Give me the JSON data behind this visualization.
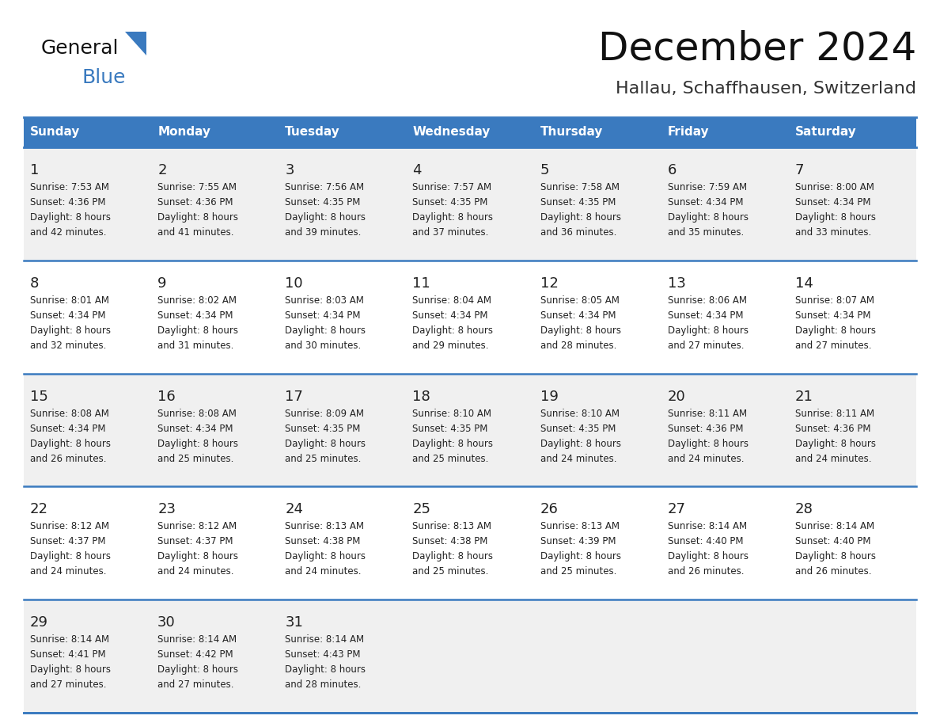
{
  "title": "December 2024",
  "subtitle": "Hallau, Schaffhausen, Switzerland",
  "header_color": "#3a7abf",
  "header_text_color": "#ffffff",
  "row_bg_odd": "#f0f0f0",
  "row_bg_even": "#ffffff",
  "border_color": "#3a7abf",
  "text_color": "#222222",
  "days_of_week": [
    "Sunday",
    "Monday",
    "Tuesday",
    "Wednesday",
    "Thursday",
    "Friday",
    "Saturday"
  ],
  "weeks": [
    [
      {
        "day": 1,
        "sunrise": "7:53 AM",
        "sunset": "4:36 PM",
        "daylight": "8 hours and 42 minutes"
      },
      {
        "day": 2,
        "sunrise": "7:55 AM",
        "sunset": "4:36 PM",
        "daylight": "8 hours and 41 minutes"
      },
      {
        "day": 3,
        "sunrise": "7:56 AM",
        "sunset": "4:35 PM",
        "daylight": "8 hours and 39 minutes"
      },
      {
        "day": 4,
        "sunrise": "7:57 AM",
        "sunset": "4:35 PM",
        "daylight": "8 hours and 37 minutes"
      },
      {
        "day": 5,
        "sunrise": "7:58 AM",
        "sunset": "4:35 PM",
        "daylight": "8 hours and 36 minutes"
      },
      {
        "day": 6,
        "sunrise": "7:59 AM",
        "sunset": "4:34 PM",
        "daylight": "8 hours and 35 minutes"
      },
      {
        "day": 7,
        "sunrise": "8:00 AM",
        "sunset": "4:34 PM",
        "daylight": "8 hours and 33 minutes"
      }
    ],
    [
      {
        "day": 8,
        "sunrise": "8:01 AM",
        "sunset": "4:34 PM",
        "daylight": "8 hours and 32 minutes"
      },
      {
        "day": 9,
        "sunrise": "8:02 AM",
        "sunset": "4:34 PM",
        "daylight": "8 hours and 31 minutes"
      },
      {
        "day": 10,
        "sunrise": "8:03 AM",
        "sunset": "4:34 PM",
        "daylight": "8 hours and 30 minutes"
      },
      {
        "day": 11,
        "sunrise": "8:04 AM",
        "sunset": "4:34 PM",
        "daylight": "8 hours and 29 minutes"
      },
      {
        "day": 12,
        "sunrise": "8:05 AM",
        "sunset": "4:34 PM",
        "daylight": "8 hours and 28 minutes"
      },
      {
        "day": 13,
        "sunrise": "8:06 AM",
        "sunset": "4:34 PM",
        "daylight": "8 hours and 27 minutes"
      },
      {
        "day": 14,
        "sunrise": "8:07 AM",
        "sunset": "4:34 PM",
        "daylight": "8 hours and 27 minutes"
      }
    ],
    [
      {
        "day": 15,
        "sunrise": "8:08 AM",
        "sunset": "4:34 PM",
        "daylight": "8 hours and 26 minutes"
      },
      {
        "day": 16,
        "sunrise": "8:08 AM",
        "sunset": "4:34 PM",
        "daylight": "8 hours and 25 minutes"
      },
      {
        "day": 17,
        "sunrise": "8:09 AM",
        "sunset": "4:35 PM",
        "daylight": "8 hours and 25 minutes"
      },
      {
        "day": 18,
        "sunrise": "8:10 AM",
        "sunset": "4:35 PM",
        "daylight": "8 hours and 25 minutes"
      },
      {
        "day": 19,
        "sunrise": "8:10 AM",
        "sunset": "4:35 PM",
        "daylight": "8 hours and 24 minutes"
      },
      {
        "day": 20,
        "sunrise": "8:11 AM",
        "sunset": "4:36 PM",
        "daylight": "8 hours and 24 minutes"
      },
      {
        "day": 21,
        "sunrise": "8:11 AM",
        "sunset": "4:36 PM",
        "daylight": "8 hours and 24 minutes"
      }
    ],
    [
      {
        "day": 22,
        "sunrise": "8:12 AM",
        "sunset": "4:37 PM",
        "daylight": "8 hours and 24 minutes"
      },
      {
        "day": 23,
        "sunrise": "8:12 AM",
        "sunset": "4:37 PM",
        "daylight": "8 hours and 24 minutes"
      },
      {
        "day": 24,
        "sunrise": "8:13 AM",
        "sunset": "4:38 PM",
        "daylight": "8 hours and 24 minutes"
      },
      {
        "day": 25,
        "sunrise": "8:13 AM",
        "sunset": "4:38 PM",
        "daylight": "8 hours and 25 minutes"
      },
      {
        "day": 26,
        "sunrise": "8:13 AM",
        "sunset": "4:39 PM",
        "daylight": "8 hours and 25 minutes"
      },
      {
        "day": 27,
        "sunrise": "8:14 AM",
        "sunset": "4:40 PM",
        "daylight": "8 hours and 26 minutes"
      },
      {
        "day": 28,
        "sunrise": "8:14 AM",
        "sunset": "4:40 PM",
        "daylight": "8 hours and 26 minutes"
      }
    ],
    [
      {
        "day": 29,
        "sunrise": "8:14 AM",
        "sunset": "4:41 PM",
        "daylight": "8 hours and 27 minutes"
      },
      {
        "day": 30,
        "sunrise": "8:14 AM",
        "sunset": "4:42 PM",
        "daylight": "8 hours and 27 minutes"
      },
      {
        "day": 31,
        "sunrise": "8:14 AM",
        "sunset": "4:43 PM",
        "daylight": "8 hours and 28 minutes"
      },
      null,
      null,
      null,
      null
    ]
  ],
  "logo_general_color": "#1a1a1a",
  "logo_blue_color": "#3a7abf",
  "logo_triangle_color": "#3a7abf"
}
